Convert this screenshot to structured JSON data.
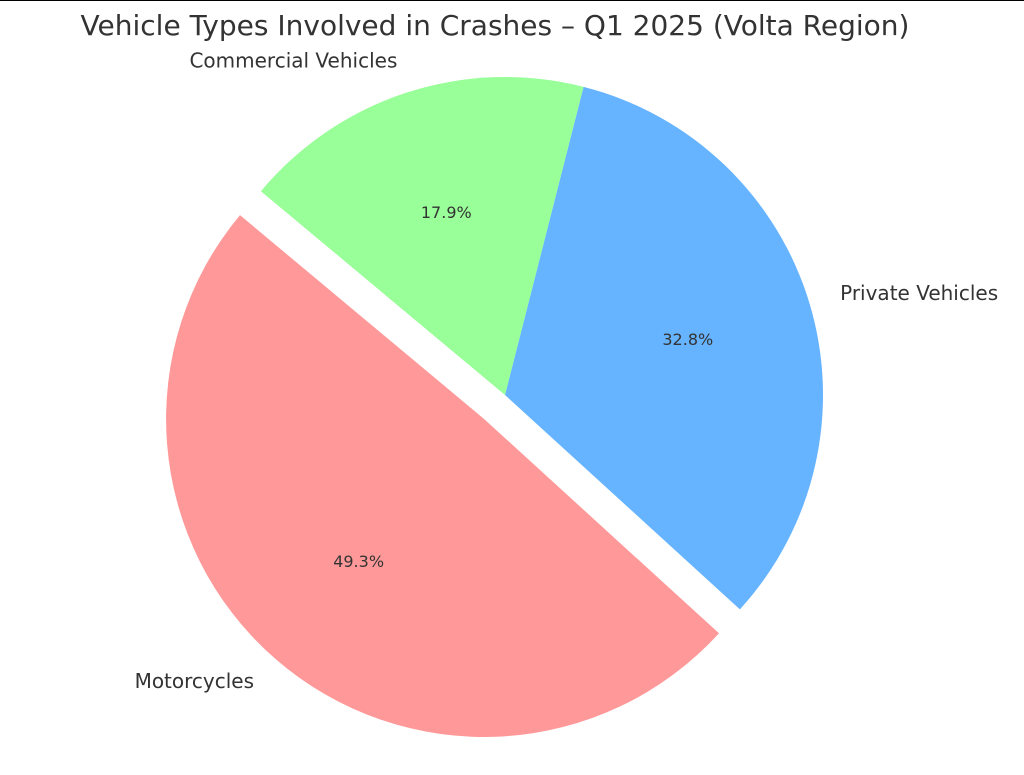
{
  "chart_data": {
    "type": "pie",
    "title": "Vehicle Types Involved in Crashes – Q1 2025 (Volta Region)",
    "categories": [
      "Private Vehicles",
      "Motorcycles",
      "Commercial Vehicles"
    ],
    "values": [
      32.8,
      49.3,
      17.9
    ],
    "value_labels": [
      "32.8%",
      "49.3%",
      "17.9%"
    ],
    "colors": [
      "#66b3ff",
      "#ff9999",
      "#99ff99"
    ]
  }
}
